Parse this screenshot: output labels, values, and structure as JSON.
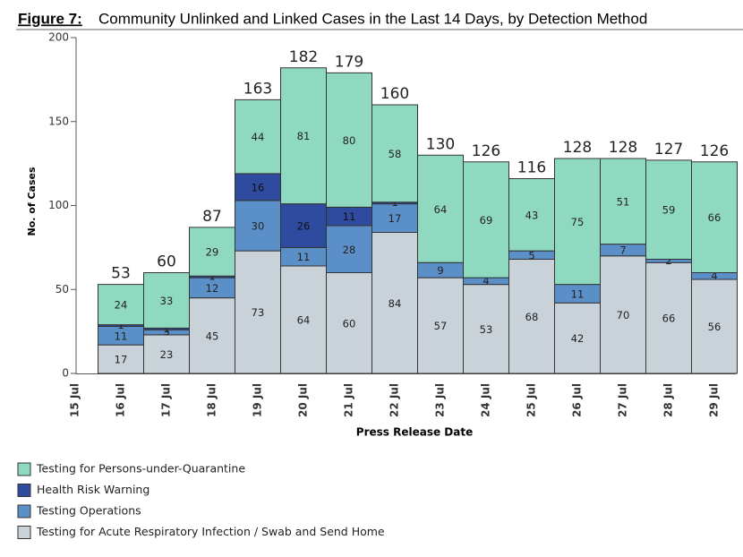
{
  "chart_data": {
    "type": "stacked-bar",
    "title_prefix": "Figure 7:",
    "title": "Community Unlinked and Linked Cases in the Last 14 Days, by Detection Method",
    "y_label": "No. of Cases",
    "x_label": "Press Release Date",
    "categories": [
      "15 Jul",
      "16 Jul",
      "17 Jul",
      "18 Jul",
      "19 Jul",
      "20 Jul",
      "21 Jul",
      "22 Jul",
      "23 Jul",
      "24 Jul",
      "25 Jul",
      "26 Jul",
      "27 Jul",
      "28 Jul",
      "29 Jul"
    ],
    "series": [
      {
        "name": "Testing for Acute Respiratory Infection / Swab and Send Home",
        "color": "#c9d1d9",
        "values": [
          null,
          17,
          23,
          45,
          73,
          64,
          60,
          84,
          57,
          53,
          68,
          42,
          70,
          66,
          56
        ]
      },
      {
        "name": "Testing Operations",
        "color": "#5b8fc7",
        "values": [
          null,
          11,
          3,
          12,
          30,
          11,
          28,
          17,
          9,
          4,
          5,
          11,
          7,
          2,
          4
        ]
      },
      {
        "name": "Health Risk Warning",
        "color": "#2f4b9f",
        "values": [
          null,
          1,
          1,
          1,
          16,
          26,
          11,
          1,
          null,
          null,
          null,
          null,
          null,
          null,
          null
        ]
      },
      {
        "name": "Testing for Persons-under-Quarantine",
        "color": "#90d9c1",
        "values": [
          null,
          24,
          33,
          29,
          44,
          81,
          80,
          58,
          64,
          69,
          43,
          75,
          51,
          59,
          66
        ]
      }
    ],
    "totals": [
      null,
      53,
      60,
      87,
      163,
      182,
      179,
      160,
      130,
      126,
      116,
      128,
      128,
      127,
      126
    ],
    "ylim": [
      0,
      200
    ],
    "yticks": [
      0,
      50,
      100,
      150,
      200
    ],
    "grid": false
  }
}
